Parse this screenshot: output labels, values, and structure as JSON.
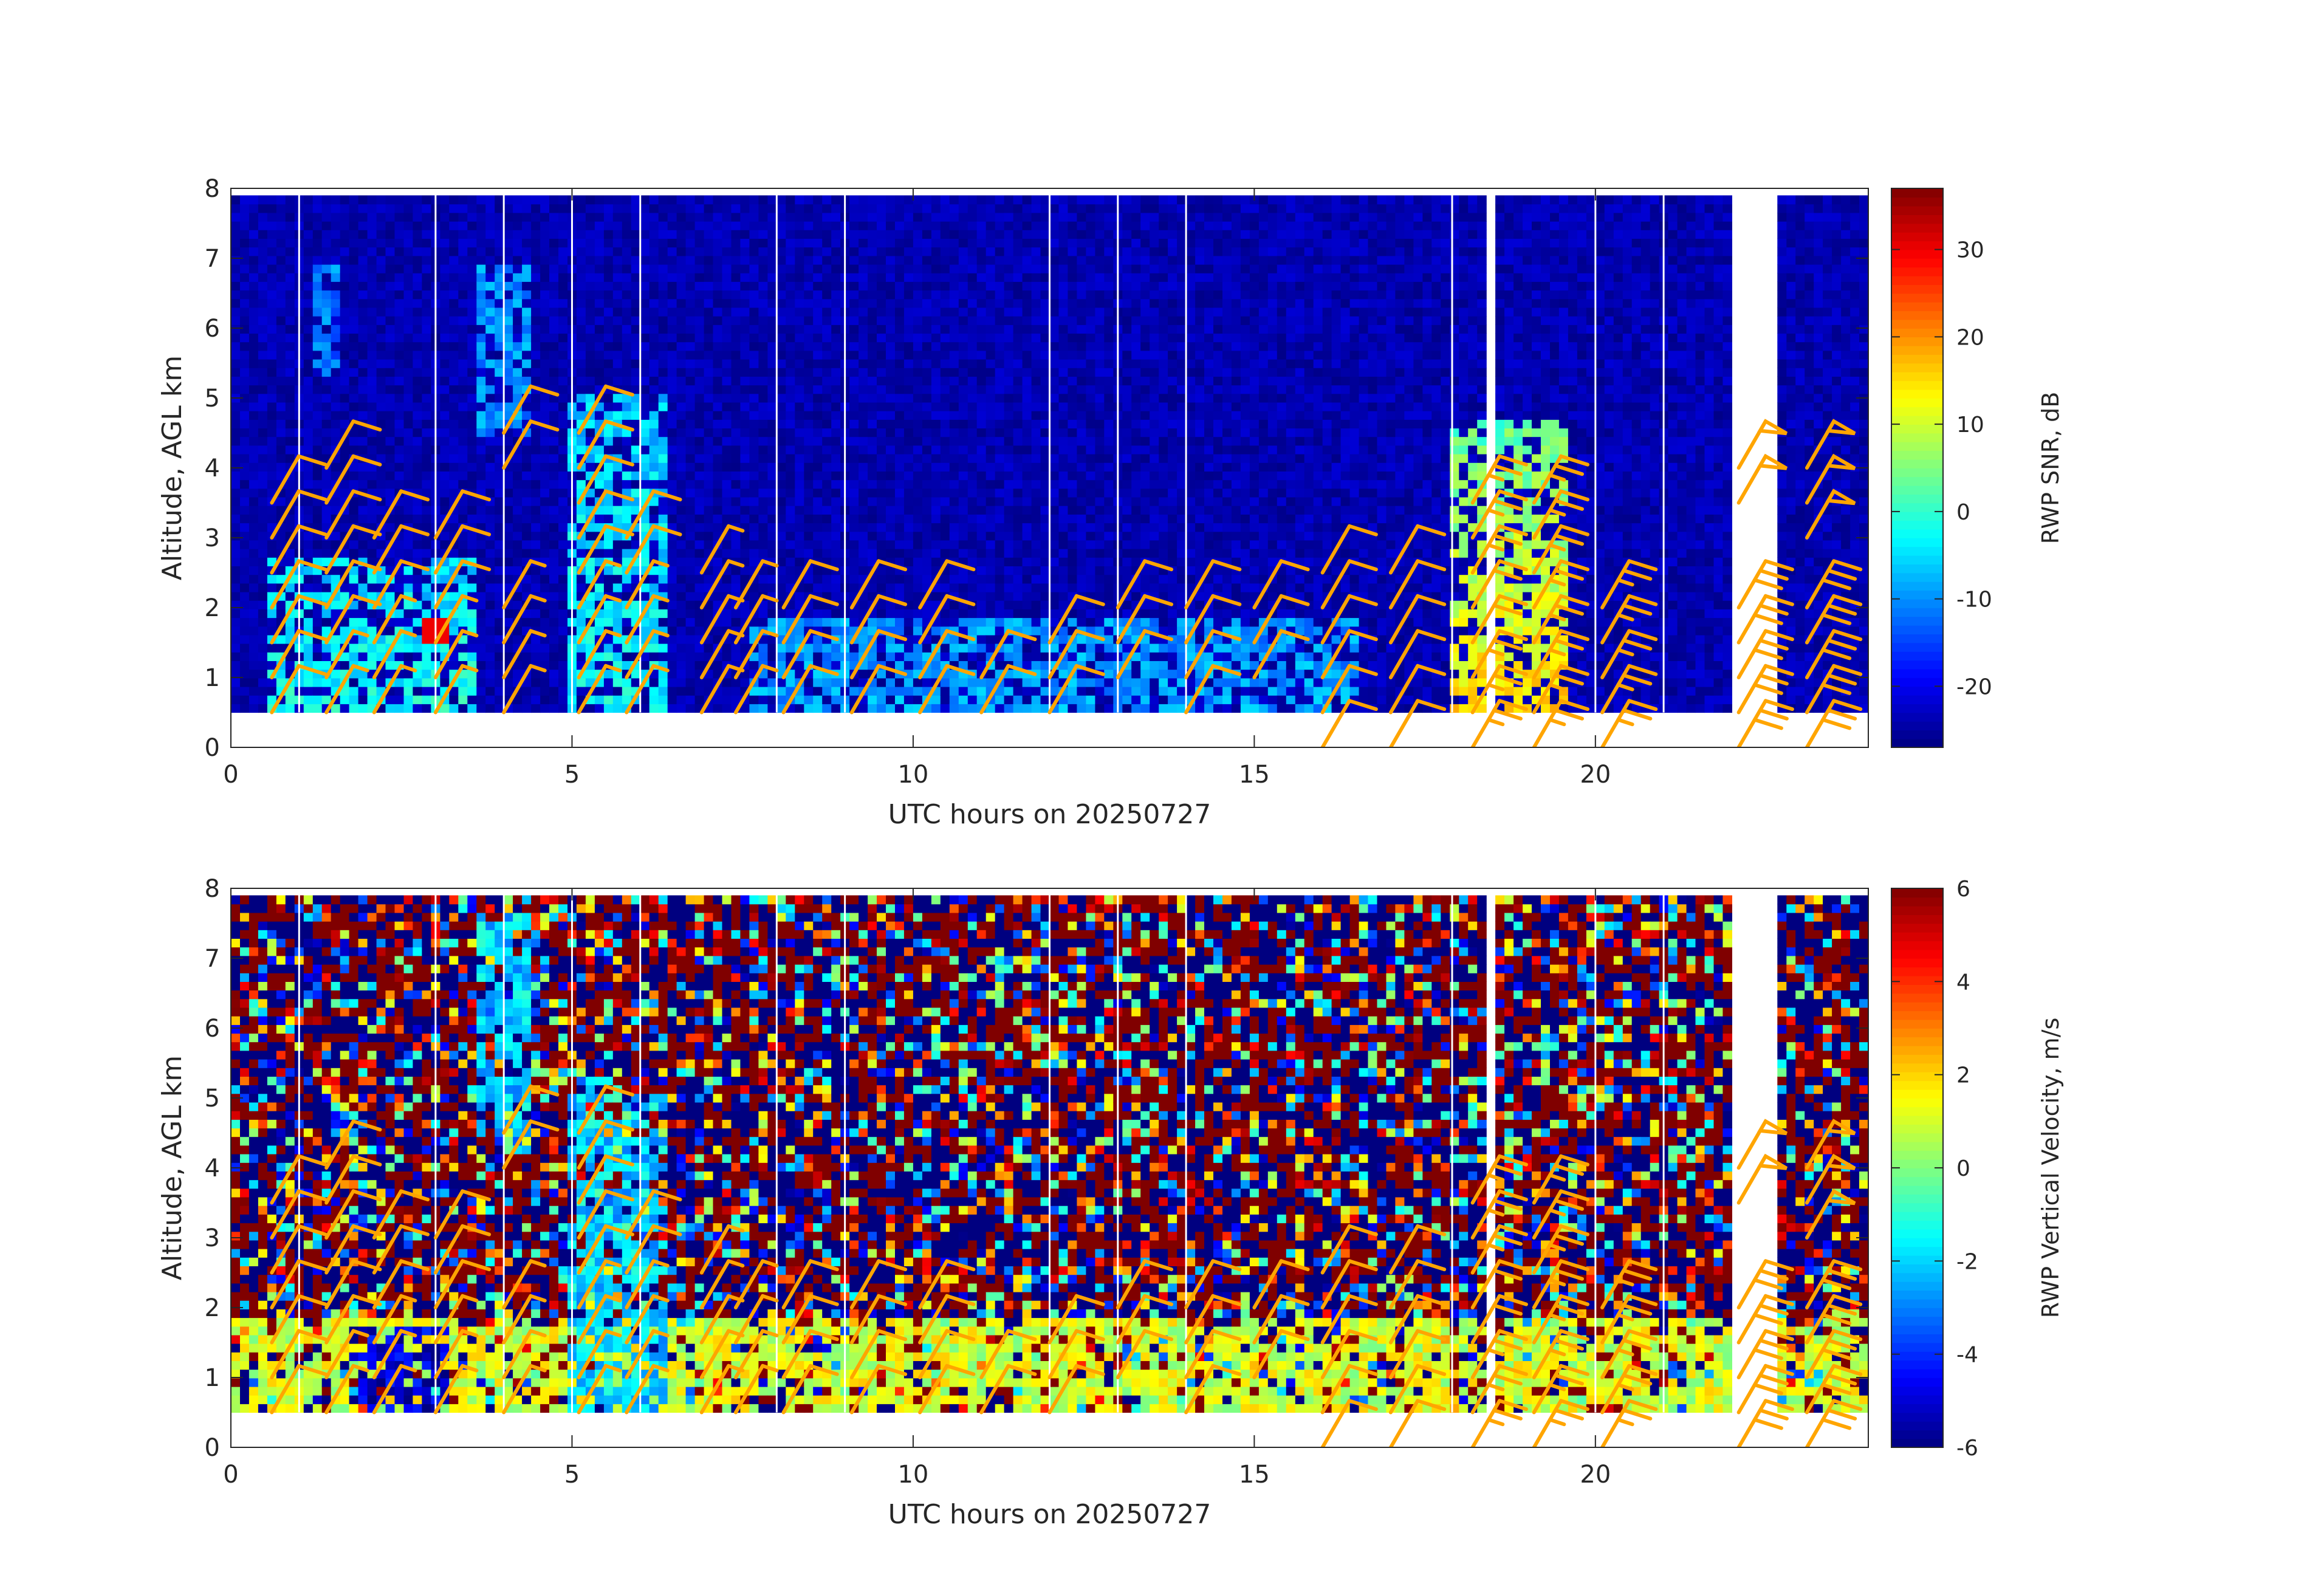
{
  "chart_data": [
    {
      "type": "heatmap",
      "panel": "top",
      "xlabel": "UTC hours on 20250727",
      "ylabel": "Altitude, AGL km",
      "xlim": [
        0,
        24
      ],
      "ylim": [
        0,
        8
      ],
      "x_ticks": [
        0,
        5,
        10,
        15,
        20
      ],
      "y_ticks": [
        0,
        1,
        2,
        3,
        4,
        5,
        6,
        7,
        8
      ],
      "data_altitude_range_km": [
        0.5,
        7.9
      ],
      "colorbar": {
        "label": "RWP SNR, dB",
        "range": [
          -27,
          37
        ],
        "ticks": [
          -20,
          -10,
          0,
          10,
          20,
          30
        ],
        "colormap": "jet"
      },
      "background_value": -24,
      "features": [
        {
          "name": "boundary layer echo",
          "x_range": [
            0.5,
            3.6
          ],
          "alt_range": [
            0.5,
            2.7
          ],
          "value": -2
        },
        {
          "name": "peak echo",
          "x": 2.95,
          "alt": 1.65,
          "value": 30
        },
        {
          "name": "mid-level streak",
          "x_range": [
            3.5,
            4.3
          ],
          "alt_range": [
            4.4,
            6.8
          ],
          "value": -10
        },
        {
          "name": "upper streak",
          "x_range": [
            1.1,
            1.6
          ],
          "alt_range": [
            5.3,
            6.8
          ],
          "value": -12
        },
        {
          "name": "convective plume",
          "x_range": [
            4.9,
            6.4
          ],
          "alt_range": [
            0.5,
            5.0
          ],
          "value": -3
        },
        {
          "name": "shallow echo",
          "x_range": [
            7.5,
            16.5
          ],
          "alt_range": [
            0.5,
            1.8
          ],
          "value": -9
        },
        {
          "name": "convective cell",
          "x_range": [
            17.8,
            19.6
          ],
          "alt_range": [
            0.5,
            4.6
          ],
          "value": 15
        }
      ],
      "missing_data_x": [
        [
          16.75,
          16.8
        ],
        [
          16.9,
          16.95
        ],
        [
          18.45,
          18.52
        ],
        [
          22.05,
          22.65
        ],
        [
          22.95,
          22.98
        ]
      ],
      "gap_lines_x": [
        1.0,
        3.0,
        4.0,
        5.0,
        6.0,
        8.0,
        9.0,
        12.0,
        13.0,
        14.0,
        17.9,
        20.0,
        21.0
      ]
    },
    {
      "type": "heatmap",
      "panel": "bottom",
      "xlabel": "UTC hours on 20250727",
      "ylabel": "Altitude, AGL km",
      "xlim": [
        0,
        24
      ],
      "ylim": [
        0,
        8
      ],
      "x_ticks": [
        0,
        5,
        10,
        15,
        20
      ],
      "y_ticks": [
        0,
        1,
        2,
        3,
        4,
        5,
        6,
        7,
        8
      ],
      "data_altitude_range_km": [
        0.5,
        7.9
      ],
      "colorbar": {
        "label": "RWP Vertical Velocity, m/s",
        "range": [
          -6,
          6
        ],
        "ticks": [
          -6,
          -4,
          -2,
          0,
          2,
          4,
          6
        ],
        "colormap": "jet"
      },
      "background": "random noise, -6 to 6 m/s",
      "features": [
        {
          "name": "low layer",
          "x_range": [
            0,
            24
          ],
          "alt_range": [
            0.5,
            1.8
          ],
          "value": 1
        },
        {
          "name": "downdraft",
          "x_range": [
            1.8,
            3.2
          ],
          "alt_range": [
            0.5,
            1.7
          ],
          "value": -5
        },
        {
          "name": "mid-level streak",
          "x_range": [
            3.5,
            4.3
          ],
          "alt_range": [
            4.4,
            7.6
          ],
          "value": -2
        },
        {
          "name": "convective plume",
          "x_range": [
            4.9,
            6.4
          ],
          "alt_range": [
            0.5,
            5.0
          ],
          "value": -2
        }
      ]
    }
  ],
  "wind_barbs": {
    "color": "#ffa500",
    "profiles": [
      {
        "x": 0.6,
        "levels": [
          [
            0.5,
            10
          ],
          [
            1.0,
            10
          ],
          [
            1.5,
            10
          ],
          [
            2.0,
            10
          ],
          [
            2.5,
            10
          ],
          [
            3.0,
            10
          ],
          [
            3.5,
            10
          ]
        ]
      },
      {
        "x": 1.4,
        "levels": [
          [
            0.5,
            5
          ],
          [
            1.0,
            5
          ],
          [
            1.5,
            10
          ],
          [
            2.0,
            10
          ],
          [
            2.5,
            10
          ],
          [
            3.0,
            10
          ],
          [
            3.5,
            10
          ],
          [
            4.0,
            10
          ]
        ]
      },
      {
        "x": 2.1,
        "levels": [
          [
            0.5,
            5
          ],
          [
            1.0,
            5
          ],
          [
            1.5,
            5
          ],
          [
            2.0,
            10
          ],
          [
            2.5,
            10
          ],
          [
            3.0,
            10
          ]
        ]
      },
      {
        "x": 3.0,
        "levels": [
          [
            0.5,
            5
          ],
          [
            1.0,
            5
          ],
          [
            1.5,
            5
          ],
          [
            2.0,
            10
          ],
          [
            2.5,
            10
          ],
          [
            3.0,
            10
          ]
        ]
      },
      {
        "x": 4.0,
        "levels": [
          [
            0.5,
            5
          ],
          [
            1.0,
            5
          ],
          [
            1.5,
            5
          ],
          [
            2.0,
            5
          ],
          [
            4.0,
            10
          ],
          [
            4.5,
            10
          ]
        ]
      },
      {
        "x": 5.1,
        "levels": [
          [
            0.5,
            5
          ],
          [
            1.0,
            5
          ],
          [
            1.5,
            5
          ],
          [
            2.0,
            5
          ],
          [
            2.5,
            10
          ],
          [
            3.0,
            10
          ],
          [
            3.5,
            10
          ],
          [
            4.0,
            10
          ],
          [
            4.5,
            10
          ]
        ]
      },
      {
        "x": 5.8,
        "levels": [
          [
            0.5,
            5
          ],
          [
            1.0,
            5
          ],
          [
            1.5,
            5
          ],
          [
            2.0,
            5
          ],
          [
            2.5,
            10
          ],
          [
            3.0,
            10
          ]
        ]
      },
      {
        "x": 6.9,
        "levels": [
          [
            0.5,
            5
          ],
          [
            1.0,
            5
          ],
          [
            1.5,
            5
          ],
          [
            2.0,
            5
          ],
          [
            2.5,
            5
          ]
        ]
      },
      {
        "x": 7.4,
        "levels": [
          [
            0.5,
            5
          ],
          [
            1.0,
            5
          ],
          [
            1.5,
            5
          ],
          [
            2.0,
            5
          ]
        ]
      },
      {
        "x": 8.1,
        "levels": [
          [
            0.5,
            10
          ],
          [
            1.0,
            10
          ],
          [
            1.5,
            10
          ],
          [
            2.0,
            10
          ]
        ]
      },
      {
        "x": 9.1,
        "levels": [
          [
            0.5,
            10
          ],
          [
            1.0,
            10
          ],
          [
            1.5,
            10
          ],
          [
            2.0,
            10
          ]
        ]
      },
      {
        "x": 10.1,
        "levels": [
          [
            0.5,
            10
          ],
          [
            1.0,
            10
          ],
          [
            1.5,
            10
          ],
          [
            2.0,
            10
          ]
        ]
      },
      {
        "x": 11.0,
        "levels": [
          [
            0.5,
            10
          ],
          [
            1.0,
            10
          ]
        ]
      },
      {
        "x": 12.0,
        "levels": [
          [
            0.5,
            10
          ],
          [
            1.0,
            10
          ],
          [
            1.5,
            10
          ]
        ]
      },
      {
        "x": 13.0,
        "levels": [
          [
            1.0,
            10
          ],
          [
            1.5,
            10
          ],
          [
            2.0,
            10
          ]
        ]
      },
      {
        "x": 14.0,
        "levels": [
          [
            0.5,
            10
          ],
          [
            1.0,
            10
          ],
          [
            1.5,
            10
          ],
          [
            2.0,
            10
          ]
        ]
      },
      {
        "x": 15.0,
        "levels": [
          [
            1.0,
            10
          ],
          [
            1.5,
            10
          ],
          [
            2.0,
            10
          ]
        ]
      },
      {
        "x": 16.0,
        "levels": [
          [
            0.0,
            10
          ],
          [
            0.5,
            10
          ],
          [
            1.0,
            10
          ],
          [
            1.5,
            10
          ],
          [
            2.0,
            10
          ],
          [
            2.5,
            10
          ]
        ]
      },
      {
        "x": 17.0,
        "levels": [
          [
            0.0,
            10
          ],
          [
            0.5,
            10
          ],
          [
            1.0,
            10
          ],
          [
            1.5,
            10
          ],
          [
            2.0,
            10
          ],
          [
            2.5,
            10
          ]
        ]
      },
      {
        "x": 18.2,
        "levels": [
          [
            0.0,
            25
          ],
          [
            0.5,
            25
          ],
          [
            1.0,
            25
          ],
          [
            1.5,
            20
          ],
          [
            2.0,
            20
          ],
          [
            2.5,
            25
          ],
          [
            3.0,
            25
          ],
          [
            3.5,
            25
          ]
        ]
      },
      {
        "x": 19.1,
        "levels": [
          [
            0.0,
            25
          ],
          [
            0.5,
            25
          ],
          [
            1.0,
            25
          ],
          [
            1.5,
            25
          ],
          [
            2.0,
            25
          ],
          [
            2.5,
            25
          ],
          [
            3.0,
            25
          ],
          [
            3.5,
            25
          ]
        ]
      },
      {
        "x": 20.1,
        "levels": [
          [
            0.0,
            25
          ],
          [
            0.5,
            25
          ],
          [
            1.0,
            25
          ],
          [
            1.5,
            25
          ],
          [
            2.0,
            25
          ]
        ]
      },
      {
        "x": 22.1,
        "levels": [
          [
            0.0,
            30
          ],
          [
            0.5,
            30
          ],
          [
            1.0,
            30
          ],
          [
            1.5,
            30
          ],
          [
            2.0,
            30
          ],
          [
            3.5,
            50
          ],
          [
            4.0,
            50
          ]
        ]
      },
      {
        "x": 23.1,
        "levels": [
          [
            0.0,
            30
          ],
          [
            0.5,
            30
          ],
          [
            1.0,
            30
          ],
          [
            1.5,
            30
          ],
          [
            2.0,
            30
          ],
          [
            3.0,
            50
          ],
          [
            3.5,
            50
          ],
          [
            4.0,
            50
          ]
        ]
      }
    ]
  }
}
